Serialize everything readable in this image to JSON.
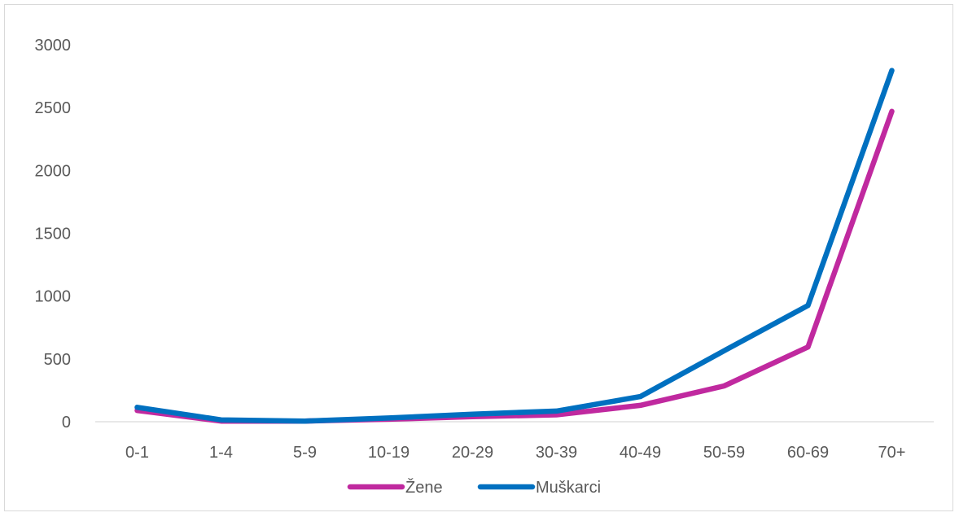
{
  "chart_data": {
    "type": "line",
    "title": "",
    "xlabel": "",
    "ylabel": "",
    "categories": [
      "0-1",
      "1-4",
      "5-9",
      "10-19",
      "20-29",
      "30-39",
      "40-49",
      "50-59",
      "60-69",
      "70+"
    ],
    "ylim": [
      0,
      3000
    ],
    "yticks": [
      0,
      500,
      1000,
      1500,
      2000,
      2500,
      3000
    ],
    "grid": false,
    "legend_position": "bottom",
    "series": [
      {
        "name": "Žene",
        "color": "#c0299f",
        "values": [
          90,
          5,
          5,
          20,
          40,
          55,
          130,
          285,
          595,
          2470
        ]
      },
      {
        "name": "Muškarci",
        "color": "#0070c0",
        "values": [
          115,
          15,
          5,
          30,
          60,
          85,
          200,
          565,
          925,
          2795
        ]
      }
    ]
  }
}
